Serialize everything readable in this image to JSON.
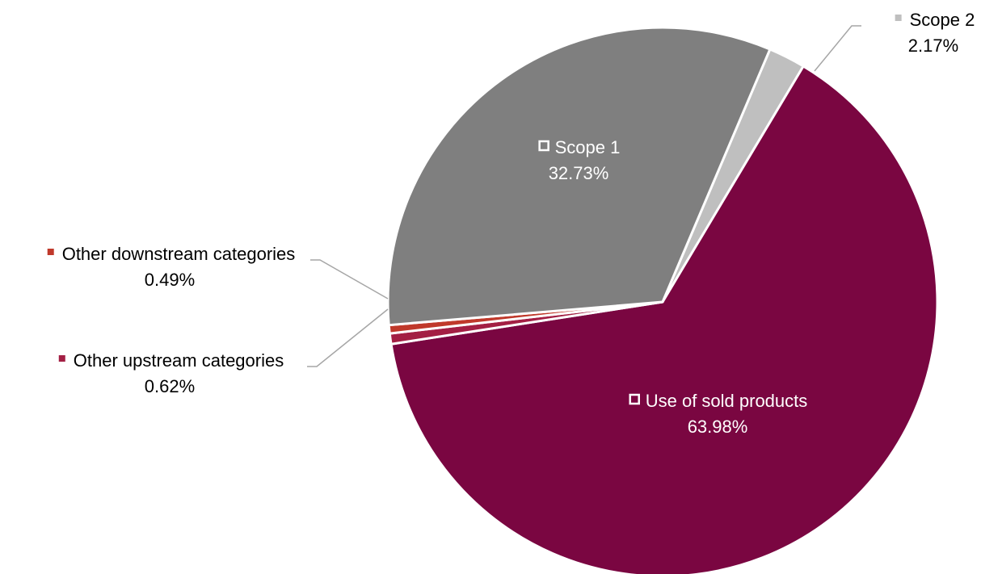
{
  "chart_data": {
    "type": "pie",
    "slices": [
      {
        "label": "Scope 2",
        "value": 2.17,
        "value_label": "2.17%",
        "color": "#bfbfbf",
        "label_color": "#000000"
      },
      {
        "label": "Use of sold products",
        "value": 63.98,
        "value_label": "63.98%",
        "color": "#7a0641",
        "label_color": "#ffffff"
      },
      {
        "label": "Other upstream categories",
        "value": 0.62,
        "value_label": "0.62%",
        "color": "#a31f44",
        "label_color": "#000000"
      },
      {
        "label": "Other downstream categories",
        "value": 0.49,
        "value_label": "0.49%",
        "color": "#c0392b",
        "label_color": "#000000"
      },
      {
        "label": "Scope 1",
        "value": 32.73,
        "value_label": "32.73%",
        "color": "#7f7f7f",
        "label_color": "#ffffff"
      }
    ],
    "data_labels": "category name and percentage",
    "legend": "none"
  }
}
